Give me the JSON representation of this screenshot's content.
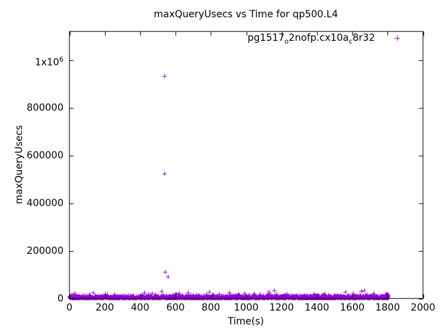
{
  "chart_data": {
    "type": "scatter",
    "title": "maxQueryUsecs vs Time for qp500.L4",
    "xlabel": "Time(s)",
    "ylabel": "maxQueryUsecs",
    "xlim": [
      0,
      2000
    ],
    "ylim": [
      0,
      1119000
    ],
    "grid": false,
    "tick_style": "inward-mirrored",
    "xticks": [
      {
        "value": 0,
        "label": "0"
      },
      {
        "value": 200,
        "label": "200"
      },
      {
        "value": 400,
        "label": "400"
      },
      {
        "value": 600,
        "label": "600"
      },
      {
        "value": 800,
        "label": "800"
      },
      {
        "value": 1000,
        "label": "1000"
      },
      {
        "value": 1200,
        "label": "1200"
      },
      {
        "value": 1400,
        "label": "1400"
      },
      {
        "value": 1600,
        "label": "1600"
      },
      {
        "value": 1800,
        "label": "1800"
      },
      {
        "value": 2000,
        "label": "2000"
      }
    ],
    "yticks": [
      {
        "value": 0,
        "label": "0"
      },
      {
        "value": 200000,
        "label": "200000"
      },
      {
        "value": 400000,
        "label": "400000"
      },
      {
        "value": 600000,
        "label": "600000"
      },
      {
        "value": 800000,
        "label": "800000"
      },
      {
        "value": 1000000,
        "label": "1x10^6"
      }
    ],
    "legend": {
      "position": "top-right-inside",
      "entries": [
        {
          "name": "pg1517_o2nofp.cx10a_c8r32",
          "label_segments": [
            {
              "text": "pg1517"
            },
            {
              "sub": "o"
            },
            {
              "text": "2nofp.cx10a"
            },
            {
              "sub": "c"
            },
            {
              "text": "8r32"
            }
          ],
          "marker": "plus",
          "color": "#9400d3"
        }
      ]
    },
    "series": [
      {
        "name": "pg1517_o2nofp.cx10a_c8r32",
        "marker": "plus",
        "color": "#9400d3",
        "outliers": [
          {
            "x": 539,
            "y": 933000
          },
          {
            "x": 539,
            "y": 522000
          },
          {
            "x": 542,
            "y": 111000
          },
          {
            "x": 555,
            "y": 90000
          }
        ],
        "baseline_band": {
          "description": "dense noise band of per-second samples hugging y=0 from t=0 to t=1800",
          "seed": 7,
          "t_start": 0,
          "t_end": 1800,
          "step": 1,
          "base": 300,
          "core_amp": 9000,
          "mid_prob": 0.25,
          "mid_amp": 10000,
          "spike_prob": 0.03,
          "spike_amp": 26000,
          "y_cap": 47000
        },
        "end_cluster": {
          "description": "dense blob at the end of the run",
          "seed": 99,
          "t_start": 1785,
          "t_end": 1801,
          "count": 150,
          "y_max": 16000
        }
      }
    ]
  }
}
